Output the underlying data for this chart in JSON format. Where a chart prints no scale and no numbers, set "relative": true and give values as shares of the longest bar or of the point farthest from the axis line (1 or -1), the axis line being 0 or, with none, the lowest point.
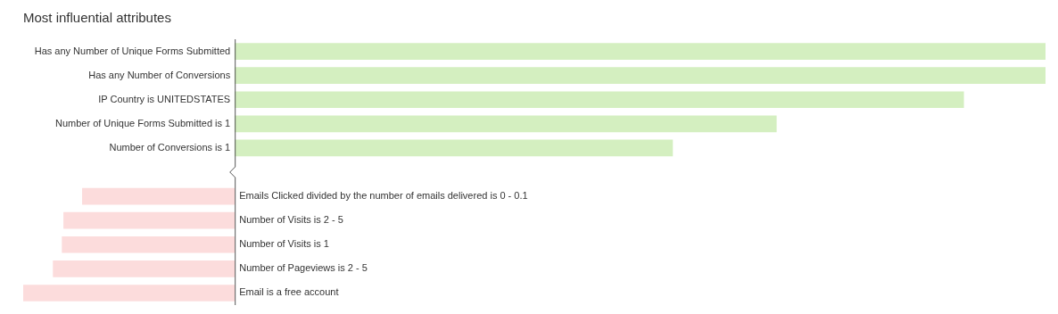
{
  "chart_data": {
    "type": "bar",
    "title": "Most influential attributes",
    "orientation": "horizontal",
    "relative": true,
    "categories": [
      "Has any Number of Unique Forms Submitted",
      "Has any Number of Conversions",
      "IP Country is UNITEDSTATES",
      "Number of Unique Forms Submitted is 1",
      "Number of Conversions is 1",
      null,
      "Emails Clicked divided by the number of emails delivered is 0 - 0.1",
      "Number of Visits is 2 - 5",
      "Number of Visits is 1",
      "Number of Pageviews is 2 - 5",
      "Email is a free account"
    ],
    "values": [
      1,
      1,
      0.899,
      0.668,
      0.54,
      null,
      -0.188,
      -0.211,
      -0.213,
      -0.224,
      -0.261
    ],
    "colors": [
      "#d4efc0",
      "#d4efc0",
      "#d4efc0",
      "#d4efc0",
      "#d4efc0",
      null,
      "#fcdcdc",
      "#fcdcdc",
      "#fcdcdc",
      "#fcdcdc",
      "#fcdcdc"
    ]
  }
}
